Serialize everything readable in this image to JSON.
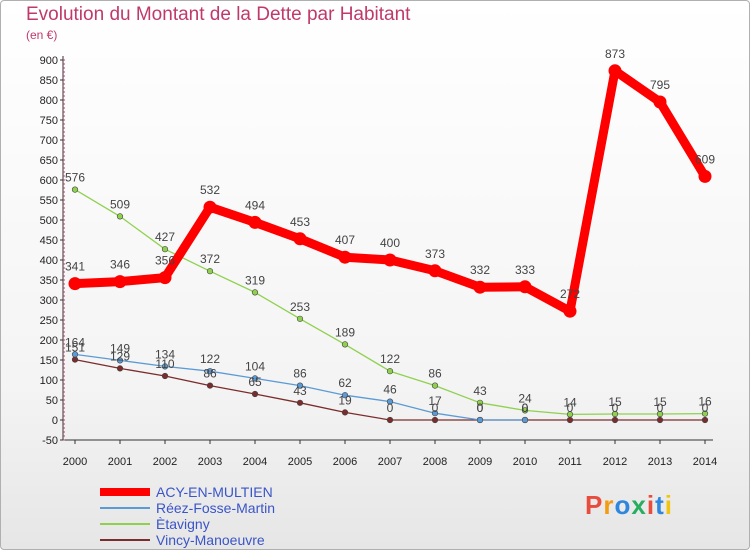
{
  "header": {
    "title": "Evolution du Montant de la Dette par Habitant",
    "subtitle": "(en €)"
  },
  "logo": {
    "text": "Proxiti",
    "colors": [
      "#e84c3d",
      "#f39c12",
      "#2e86de",
      "#27ae60",
      "#e84c3d",
      "#2e86de",
      "#f1c40f"
    ]
  },
  "chart_data": {
    "type": "line",
    "title": "Evolution du Montant de la Dette par Habitant",
    "subtitle": "(en €)",
    "xlabel": "",
    "ylabel": "",
    "x": [
      "2000",
      "2001",
      "2002",
      "2003",
      "2004",
      "2005",
      "2006",
      "2007",
      "2008",
      "2009",
      "2010",
      "2011",
      "2012",
      "2013",
      "2014"
    ],
    "ylim": [
      -50,
      900
    ],
    "yticks": [
      -50,
      0,
      50,
      100,
      150,
      200,
      250,
      300,
      350,
      400,
      450,
      500,
      550,
      600,
      650,
      700,
      750,
      800,
      850,
      900
    ],
    "grid": false,
    "legend_position": "bottom-left",
    "series": [
      {
        "name": "ACY-EN-MULTIEN",
        "color": "#ff0000",
        "values": [
          341,
          346,
          356,
          532,
          494,
          453,
          407,
          400,
          373,
          332,
          333,
          272,
          873,
          795,
          609
        ],
        "labels": [
          "341",
          "346",
          "356",
          "532",
          "494",
          "453",
          "407",
          "400",
          "373",
          "332",
          "333",
          "272",
          "873",
          "795",
          "609"
        ]
      },
      {
        "name": "Réez-Fosse-Martin",
        "color": "#5b9bd5",
        "values": [
          164,
          149,
          134,
          122,
          104,
          86,
          62,
          46,
          17,
          0,
          0,
          null,
          null,
          null,
          null
        ],
        "labels": [
          "164",
          "149",
          "134",
          "122",
          "104",
          "86",
          "62",
          "46",
          "17",
          "0",
          "0",
          "",
          "",
          "",
          ""
        ]
      },
      {
        "name": "Ètavigny",
        "color": "#8fd14f",
        "values": [
          576,
          509,
          427,
          372,
          319,
          253,
          189,
          122,
          86,
          43,
          24,
          14,
          15,
          15,
          16
        ],
        "labels": [
          "576",
          "509",
          "427",
          "372",
          "319",
          "253",
          "189",
          "122",
          "86",
          "43",
          "24",
          "14",
          "15",
          "15",
          "16"
        ]
      },
      {
        "name": "Vincy-Manoeuvre",
        "color": "#7b2c2c",
        "values": [
          151,
          129,
          110,
          86,
          65,
          43,
          19,
          0,
          0,
          0,
          0,
          0,
          0,
          0,
          0
        ],
        "labels": [
          "151",
          "129",
          "110",
          "86",
          "65",
          "43",
          "19",
          "0",
          "0",
          "0",
          "0",
          "0",
          "0",
          "0",
          "0"
        ]
      }
    ]
  }
}
